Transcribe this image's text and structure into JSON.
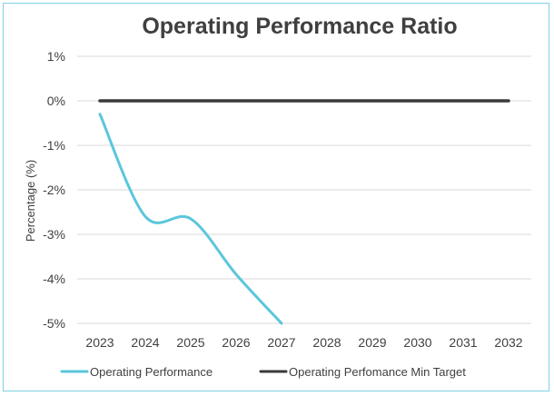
{
  "chart_data": {
    "type": "line",
    "title": "Operating Performance Ratio",
    "xlabel": "",
    "ylabel": "Percentage (%)",
    "categories": [
      "2023",
      "2024",
      "2025",
      "2026",
      "2027",
      "2028",
      "2029",
      "2030",
      "2031",
      "2032"
    ],
    "y_ticks": [
      1,
      0,
      -1,
      -2,
      -3,
      -4,
      -5
    ],
    "y_tick_labels": [
      "1%",
      "0%",
      "-1%",
      "-2%",
      "-3%",
      "-4%",
      "-5%"
    ],
    "ylim": [
      -5,
      1
    ],
    "grid": true,
    "legend_position": "bottom",
    "series": [
      {
        "name": "Operating Performance",
        "color": "#5bc6dc",
        "values": [
          -0.3,
          -2.6,
          -2.65,
          -3.9,
          -5.0,
          null,
          null,
          null,
          null,
          null
        ]
      },
      {
        "name": "Operating Perfomance Min Target",
        "color": "#3a3a3a",
        "values": [
          0,
          0,
          0,
          0,
          0,
          0,
          0,
          0,
          0,
          0
        ]
      }
    ]
  }
}
